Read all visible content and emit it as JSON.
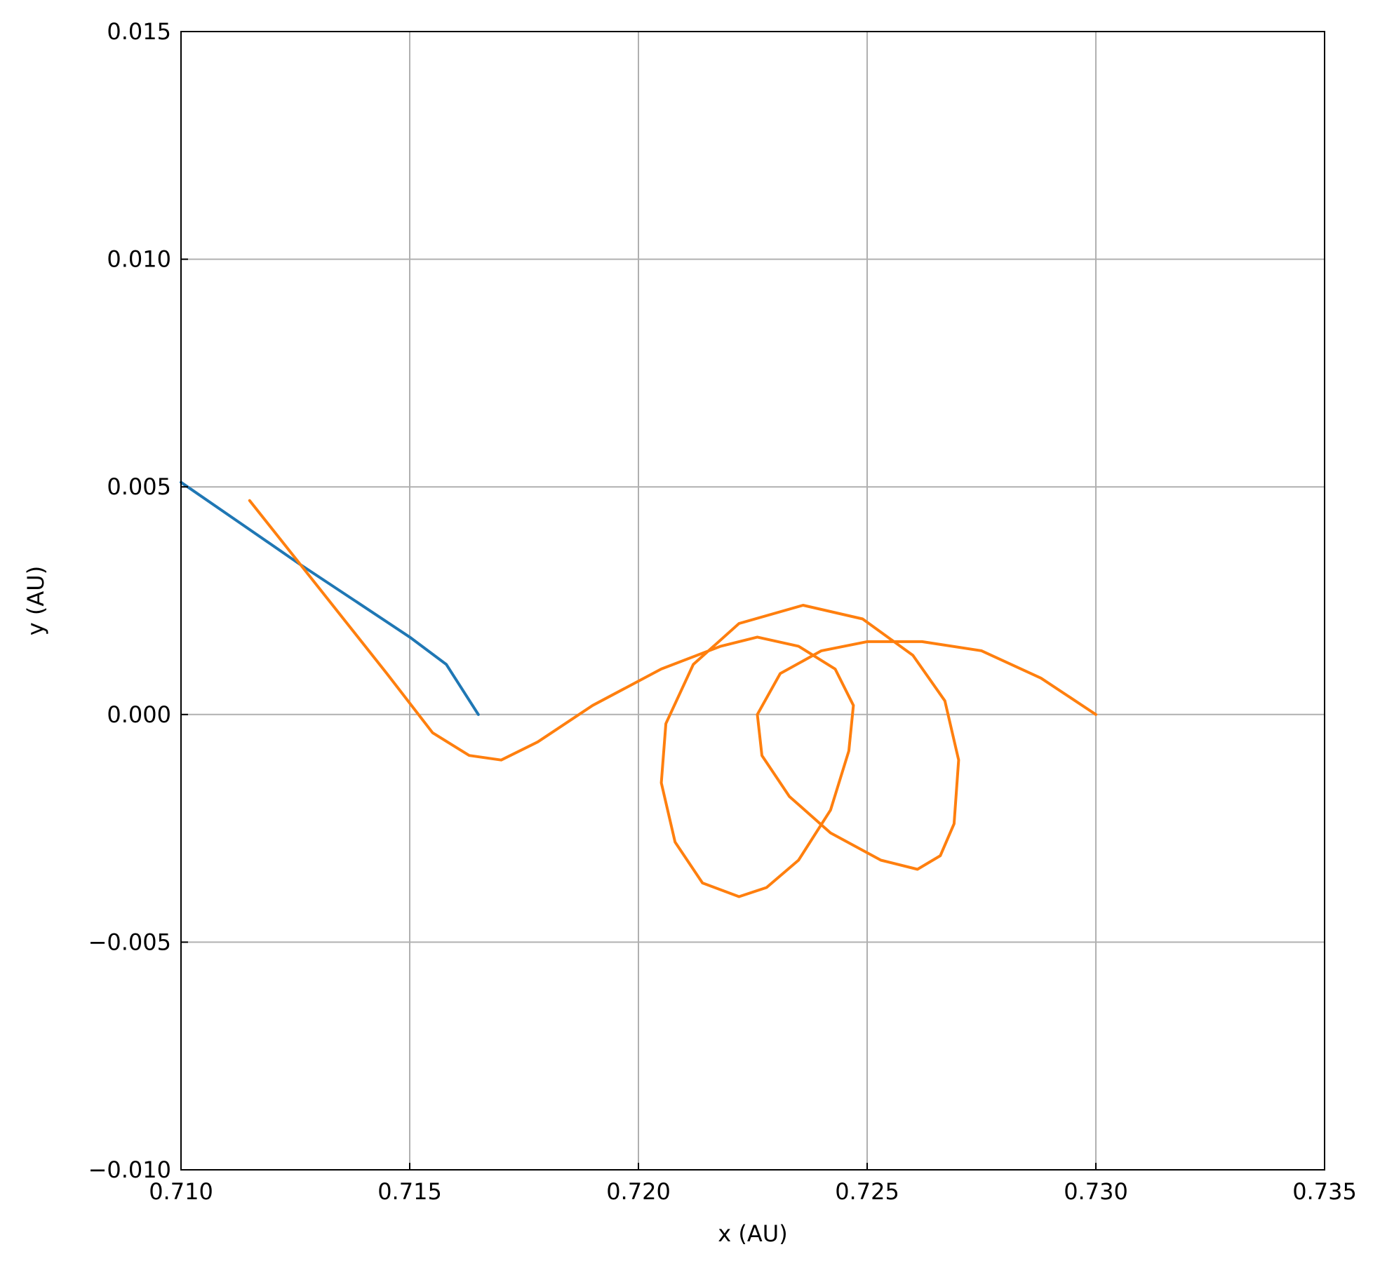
{
  "chart_data": {
    "type": "line",
    "title": "",
    "xlabel": "x (AU)",
    "ylabel": "y (AU)",
    "xlim": [
      0.71,
      0.735
    ],
    "ylim": [
      -0.01,
      0.015
    ],
    "x_ticks": [
      0.71,
      0.715,
      0.72,
      0.725,
      0.73,
      0.735
    ],
    "x_tick_labels": [
      "0.710",
      "0.715",
      "0.720",
      "0.725",
      "0.730",
      "0.735"
    ],
    "y_ticks": [
      -0.01,
      -0.005,
      0.0,
      0.005,
      0.01,
      0.015
    ],
    "y_tick_labels": [
      "−0.010",
      "−0.005",
      "0.000",
      "0.005",
      "0.010",
      "0.015"
    ],
    "grid": true,
    "legend": "none",
    "series": [
      {
        "color": "#1f77b4",
        "points": [
          [
            0.71,
            0.0051
          ],
          [
            0.7113,
            0.0042
          ],
          [
            0.7126,
            0.0033
          ],
          [
            0.7138,
            0.0025
          ],
          [
            0.715,
            0.0017
          ],
          [
            0.7158,
            0.0011
          ],
          [
            0.7165,
            0.0
          ]
        ]
      },
      {
        "color": "#ff7f0e",
        "points": [
          [
            0.7115,
            0.0047
          ],
          [
            0.713,
            0.0028
          ],
          [
            0.7145,
            0.0009
          ],
          [
            0.7155,
            -0.0004
          ],
          [
            0.7163,
            -0.0009
          ],
          [
            0.717,
            -0.001
          ],
          [
            0.7178,
            -0.0006
          ],
          [
            0.719,
            0.0002
          ],
          [
            0.7205,
            0.001
          ],
          [
            0.7218,
            0.0015
          ],
          [
            0.7226,
            0.0017
          ],
          [
            0.7235,
            0.0015
          ],
          [
            0.7243,
            0.001
          ],
          [
            0.7247,
            0.0002
          ],
          [
            0.7246,
            -0.0008
          ],
          [
            0.7242,
            -0.0021
          ],
          [
            0.7235,
            -0.0032
          ],
          [
            0.7228,
            -0.0038
          ],
          [
            0.7222,
            -0.004
          ],
          [
            0.7214,
            -0.0037
          ],
          [
            0.7208,
            -0.0028
          ],
          [
            0.7205,
            -0.0015
          ],
          [
            0.7206,
            -0.0002
          ],
          [
            0.7212,
            0.0011
          ],
          [
            0.7222,
            0.002
          ],
          [
            0.7236,
            0.0024
          ],
          [
            0.7249,
            0.0021
          ],
          [
            0.726,
            0.0013
          ],
          [
            0.7267,
            0.0003
          ],
          [
            0.727,
            -0.001
          ],
          [
            0.7269,
            -0.0024
          ],
          [
            0.7266,
            -0.0031
          ],
          [
            0.7261,
            -0.0034
          ],
          [
            0.7253,
            -0.0032
          ],
          [
            0.7242,
            -0.0026
          ],
          [
            0.7233,
            -0.0018
          ],
          [
            0.7227,
            -0.0009
          ],
          [
            0.7226,
            0.0
          ],
          [
            0.7231,
            0.0009
          ],
          [
            0.724,
            0.0014
          ],
          [
            0.725,
            0.0016
          ],
          [
            0.7262,
            0.0016
          ],
          [
            0.7275,
            0.0014
          ],
          [
            0.7288,
            0.0008
          ],
          [
            0.73,
            0.0
          ]
        ]
      }
    ]
  }
}
